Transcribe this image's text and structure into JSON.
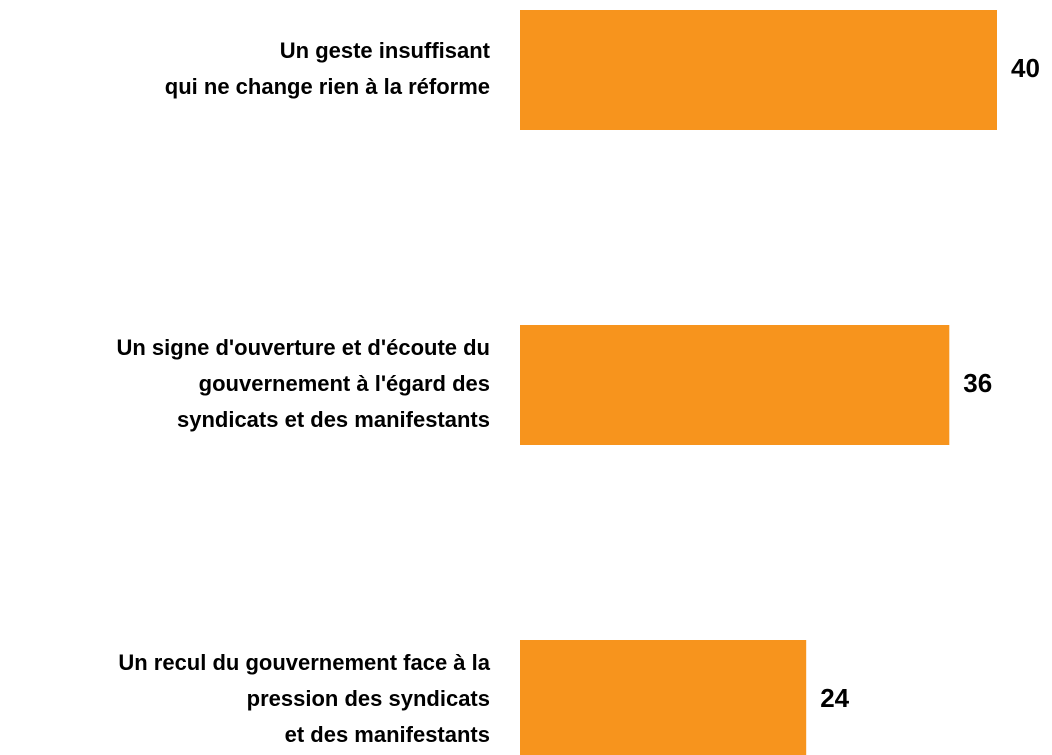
{
  "chart_data": {
    "type": "hbar",
    "categories": [
      "Un geste insuffisant\nqui ne change rien à la réforme",
      "Un signe d'ouverture et d'écoute du\ngouvernement à l'égard des\nsyndicats et des manifestants",
      "Un recul du gouvernement face à la\npression des syndicats\net des manifestants"
    ],
    "values": [
      40,
      36,
      24
    ],
    "color": "#f7941d"
  }
}
